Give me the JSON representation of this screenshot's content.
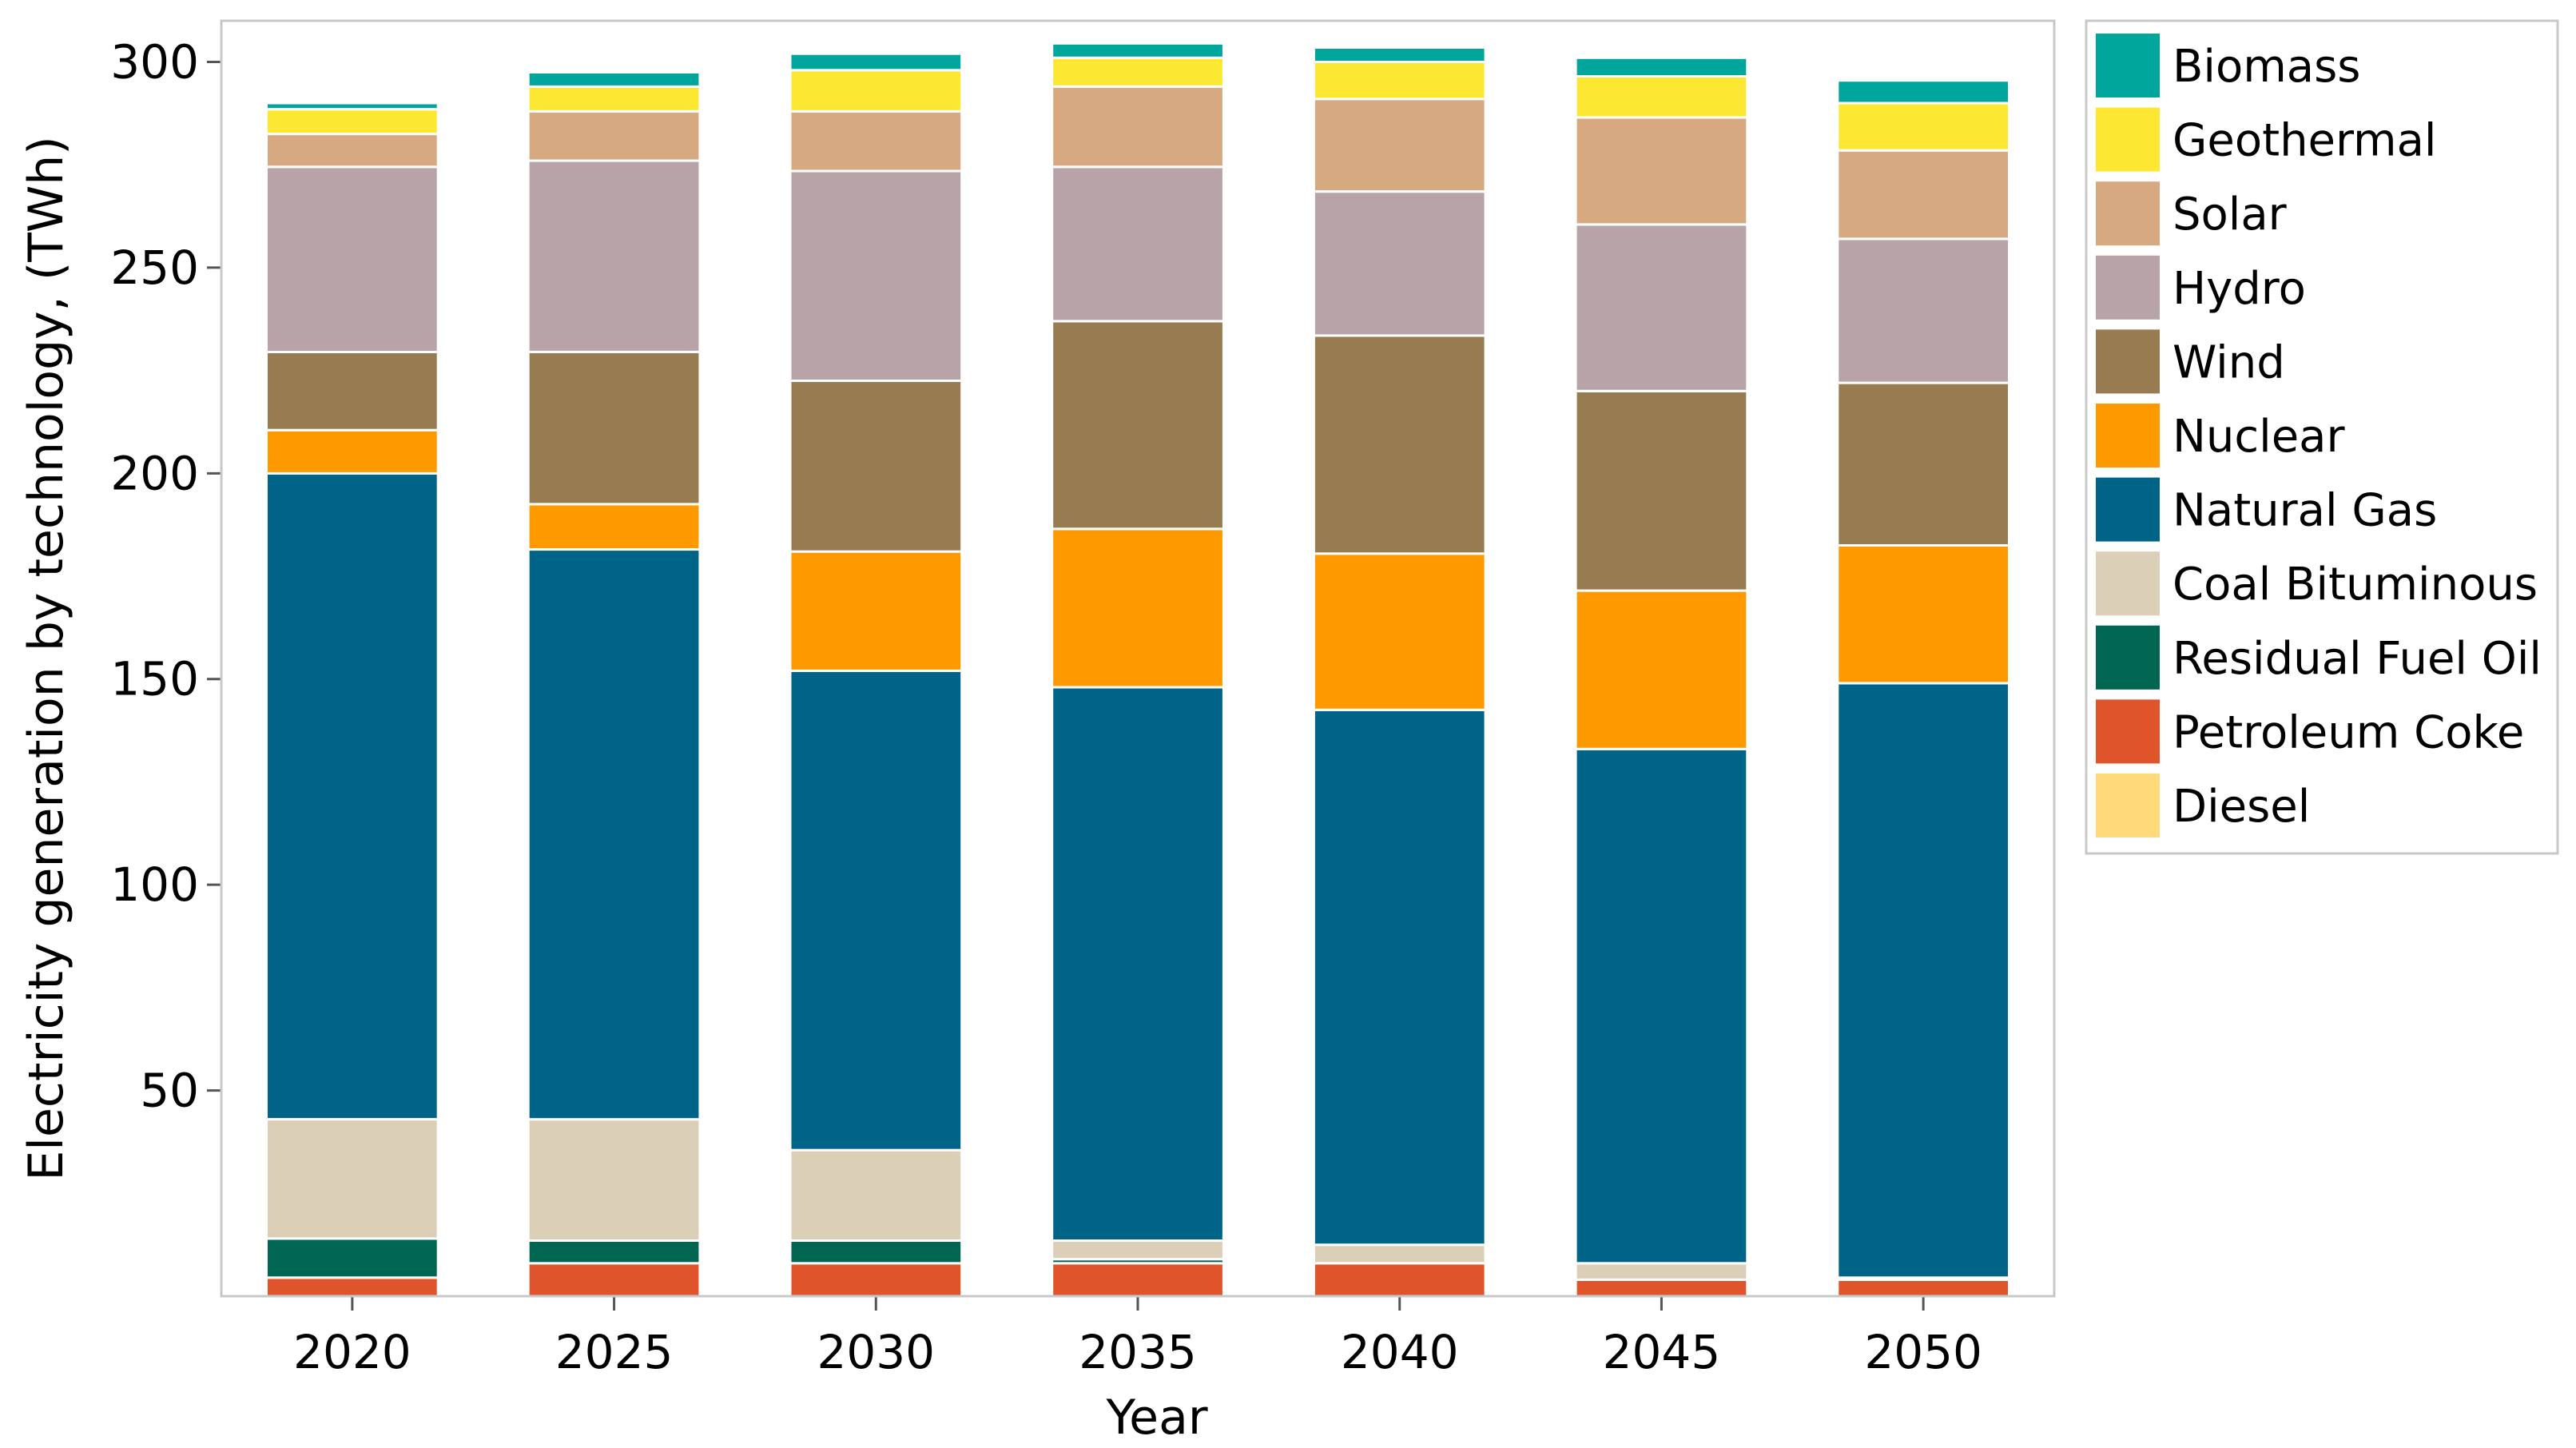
{
  "chart_data": {
    "type": "bar",
    "stacked": true,
    "title": "",
    "xlabel": "Year",
    "ylabel": "Electricity generation by technology, (TWh)",
    "ylim": [
      0,
      310
    ],
    "yticks": [
      50,
      100,
      150,
      200,
      250,
      300
    ],
    "grid": false,
    "legend_position": "right",
    "categories": [
      "2020",
      "2025",
      "2030",
      "2035",
      "2040",
      "2045",
      "2050"
    ],
    "series": [
      {
        "name": "Diesel",
        "color": "#FFD97A",
        "values": [
          0,
          0,
          0,
          0,
          0,
          0,
          0
        ]
      },
      {
        "name": "Petroleum Coke",
        "color": "#E0542C",
        "values": [
          4.5,
          8,
          8,
          8,
          8,
          4,
          4
        ]
      },
      {
        "name": "Residual Fuel Oil",
        "color": "#006652",
        "values": [
          9.5,
          5.5,
          5.5,
          1,
          0,
          0,
          0.5
        ]
      },
      {
        "name": "Coal Bituminous",
        "color": "#DCCFB8",
        "values": [
          29,
          29.5,
          22,
          4.5,
          4.5,
          4,
          0
        ]
      },
      {
        "name": "Natural Gas",
        "color": "#006488",
        "values": [
          157,
          138.5,
          116.5,
          134.5,
          130,
          125,
          144.5
        ]
      },
      {
        "name": "Nuclear",
        "color": "#FF9900",
        "values": [
          10.5,
          11,
          29,
          38.5,
          38,
          38.5,
          33.5
        ]
      },
      {
        "name": "Wind",
        "color": "#977B51",
        "values": [
          19,
          37,
          41.5,
          50.5,
          53,
          48.5,
          39.5
        ]
      },
      {
        "name": "Hydro",
        "color": "#B8A4A8",
        "values": [
          45,
          46.5,
          51,
          37.5,
          35,
          40.5,
          35
        ]
      },
      {
        "name": "Solar",
        "color": "#D6A981",
        "values": [
          8,
          12,
          14.5,
          19.5,
          22.5,
          26,
          21.5
        ]
      },
      {
        "name": "Geothermal",
        "color": "#FCE833",
        "values": [
          6,
          6,
          10,
          7,
          9,
          10,
          11.5
        ]
      },
      {
        "name": "Biomass",
        "color": "#00A69C",
        "values": [
          1.5,
          3.5,
          4,
          3.5,
          3.5,
          4.5,
          5.5
        ]
      }
    ],
    "legend_order": [
      "Biomass",
      "Geothermal",
      "Solar",
      "Hydro",
      "Wind",
      "Nuclear",
      "Natural Gas",
      "Coal Bituminous",
      "Residual Fuel Oil",
      "Petroleum Coke",
      "Diesel"
    ]
  }
}
